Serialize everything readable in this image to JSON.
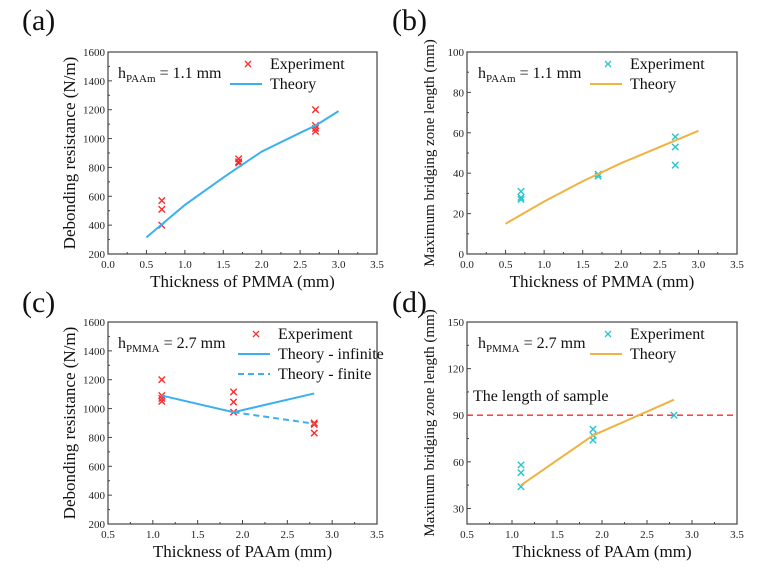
{
  "chart_data": [
    {
      "id": "a",
      "type": "scatter",
      "panel_label": "(a)",
      "xlabel": "Thickness of PMMA (mm)",
      "ylabel": "Debonding resistance (N/m)",
      "xlim": [
        0.0,
        3.5
      ],
      "ylim": [
        200,
        1600
      ],
      "xticks": [
        "0.0",
        "0.5",
        "1.0",
        "1.5",
        "2.0",
        "2.5",
        "3.0",
        "3.5"
      ],
      "yticks": [
        "200",
        "400",
        "600",
        "800",
        "1000",
        "1200",
        "1400",
        "1600"
      ],
      "annotation": {
        "main": "h",
        "sub": "PAAm",
        "rest": " = 1.1 mm"
      },
      "legend": {
        "position": "top-right",
        "entries": [
          "Experiment",
          "Theory"
        ]
      },
      "series": [
        {
          "name": "Experiment",
          "kind": "marker",
          "color": "#ff2a2a",
          "x": [
            0.7,
            0.7,
            0.7,
            1.7,
            1.7,
            1.7,
            2.7,
            2.7,
            2.7,
            2.7
          ],
          "y": [
            570,
            510,
            400,
            860,
            840,
            830,
            1200,
            1090,
            1070,
            1050
          ]
        },
        {
          "name": "Theory",
          "kind": "line",
          "color": "#3bb0ef",
          "dash": false,
          "x": [
            0.5,
            0.7,
            1.0,
            1.5,
            2.0,
            2.5,
            2.7,
            3.0
          ],
          "y": [
            315,
            405,
            540,
            730,
            910,
            1040,
            1090,
            1190
          ]
        }
      ]
    },
    {
      "id": "b",
      "type": "scatter",
      "panel_label": "(b)",
      "xlabel": "Thickness of PMMA (mm)",
      "ylabel": "Maximum bridging zone length (mm)",
      "xlim": [
        0.0,
        3.5
      ],
      "ylim": [
        0,
        100
      ],
      "xticks": [
        "0.0",
        "0.5",
        "1.0",
        "1.5",
        "2.0",
        "2.5",
        "3.0",
        "3.5"
      ],
      "yticks": [
        "0",
        "20",
        "40",
        "60",
        "80",
        "100"
      ],
      "annotation": {
        "main": "h",
        "sub": "PAAm",
        "rest": " = 1.1 mm"
      },
      "legend": {
        "position": "top-right",
        "entries": [
          "Experiment",
          "Theory"
        ]
      },
      "series": [
        {
          "name": "Experiment",
          "kind": "marker",
          "color": "#27c6d0",
          "x": [
            0.7,
            0.7,
            0.7,
            1.7,
            1.7,
            2.7,
            2.7,
            2.7
          ],
          "y": [
            31,
            28,
            27,
            39.5,
            38.5,
            58,
            53,
            44
          ]
        },
        {
          "name": "Theory",
          "kind": "line",
          "color": "#efb342",
          "dash": false,
          "x": [
            0.5,
            1.0,
            1.5,
            2.0,
            2.5,
            3.0
          ],
          "y": [
            15,
            26,
            36,
            45,
            53,
            61
          ]
        }
      ]
    },
    {
      "id": "c",
      "type": "scatter",
      "panel_label": "(c)",
      "xlabel": "Thickness of PAAm (mm)",
      "ylabel": "Debonding resistance (N/m)",
      "xlim": [
        0.5,
        3.5
      ],
      "ylim": [
        200,
        1600
      ],
      "xticks": [
        "0.5",
        "1.0",
        "1.5",
        "2.0",
        "2.5",
        "3.0",
        "3.5"
      ],
      "yticks": [
        "200",
        "400",
        "600",
        "800",
        "1000",
        "1200",
        "1400",
        "1600"
      ],
      "annotation": {
        "main": "h",
        "sub": "PMMA",
        "rest": " = 2.7 mm"
      },
      "legend": {
        "position": "top-right",
        "entries": [
          "Experiment",
          "Theory - infinite",
          "Theory - finite"
        ]
      },
      "series": [
        {
          "name": "Experiment",
          "kind": "marker",
          "color": "#ff2a2a",
          "x": [
            1.1,
            1.1,
            1.1,
            1.1,
            1.9,
            1.9,
            1.9,
            2.8,
            2.8,
            2.8
          ],
          "y": [
            1200,
            1090,
            1070,
            1050,
            1115,
            1045,
            975,
            900,
            890,
            830
          ]
        },
        {
          "name": "Theory - infinite",
          "kind": "line",
          "color": "#3bb0ef",
          "dash": false,
          "x": [
            1.1,
            1.9,
            2.8
          ],
          "y": [
            1090,
            975,
            1105
          ]
        },
        {
          "name": "Theory - finite",
          "kind": "line",
          "color": "#3bb0ef",
          "dash": true,
          "x": [
            1.9,
            2.8
          ],
          "y": [
            975,
            895
          ]
        }
      ]
    },
    {
      "id": "d",
      "type": "scatter",
      "panel_label": "(d)",
      "xlabel": "Thickness of PAAm (mm)",
      "ylabel": "Maximum bridging zone length (mm)",
      "xlim": [
        0.5,
        3.5
      ],
      "ylim": [
        20,
        150
      ],
      "xticks": [
        "0.5",
        "1.0",
        "1.5",
        "2.0",
        "2.5",
        "3.0",
        "3.5"
      ],
      "yticks": [
        "30",
        "60",
        "90",
        "120",
        "150"
      ],
      "annotation": {
        "main": "h",
        "sub": "PMMA",
        "rest": " = 2.7 mm"
      },
      "legend": {
        "position": "top-right",
        "entries": [
          "Experiment",
          "Theory"
        ]
      },
      "reference_line": {
        "y": 90,
        "label": "The length of sample",
        "color": "#ff2a2a",
        "dash": true
      },
      "series": [
        {
          "name": "Experiment",
          "kind": "marker",
          "color": "#27c6d0",
          "x": [
            1.1,
            1.1,
            1.1,
            1.9,
            1.9,
            1.9,
            2.8
          ],
          "y": [
            58,
            53,
            44,
            81,
            77,
            74,
            90
          ]
        },
        {
          "name": "Theory",
          "kind": "line",
          "color": "#efb342",
          "dash": false,
          "x": [
            1.1,
            1.9,
            2.8
          ],
          "y": [
            45,
            77,
            100
          ]
        }
      ]
    }
  ]
}
